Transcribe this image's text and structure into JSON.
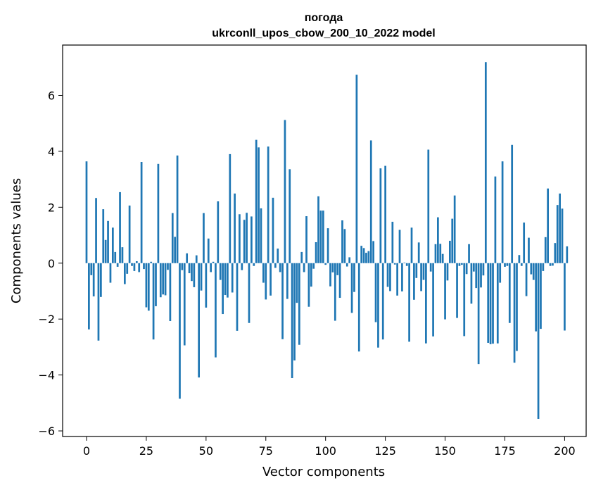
{
  "chart_data": {
    "type": "bar",
    "title": "погода",
    "subtitle": "ukrconll_upos_cbow_200_10_2022 model",
    "xlabel": "Vector components",
    "ylabel": "Components values",
    "xlim": [
      -10,
      209
    ],
    "ylim": [
      -6.2,
      7.8
    ],
    "xticks": [
      0,
      25,
      50,
      75,
      100,
      125,
      150,
      175,
      200
    ],
    "yticks": [
      -6,
      -4,
      -2,
      0,
      2,
      4,
      6
    ],
    "grid": false,
    "bar_color": "#1f77b4",
    "values": [
      3.64,
      -2.37,
      -0.43,
      -1.19,
      2.33,
      -2.77,
      -1.21,
      1.93,
      0.83,
      1.51,
      -0.7,
      1.27,
      0.4,
      -0.13,
      2.54,
      0.57,
      -0.75,
      -0.38,
      2.06,
      -0.1,
      -0.28,
      0.07,
      -0.32,
      3.62,
      -0.21,
      -1.58,
      -1.7,
      0.05,
      -2.73,
      -1.54,
      3.55,
      -1.22,
      -1.12,
      -1.15,
      -0.24,
      -2.07,
      1.79,
      0.94,
      3.85,
      -4.85,
      -0.25,
      -2.94,
      0.35,
      -0.36,
      -0.64,
      -0.86,
      0.28,
      -4.09,
      -0.98,
      1.79,
      -1.59,
      0.88,
      -0.32,
      0.05,
      -3.37,
      2.21,
      -0.6,
      -1.82,
      -1.14,
      -1.23,
      3.9,
      -1.05,
      2.49,
      -2.42,
      1.75,
      -0.25,
      1.55,
      1.8,
      -2.14,
      1.67,
      -0.1,
      4.41,
      4.14,
      1.96,
      -0.7,
      -1.3,
      4.17,
      -1.16,
      2.34,
      -0.17,
      0.52,
      -0.32,
      -2.72,
      5.12,
      -1.28,
      3.36,
      -4.11,
      -3.48,
      -1.42,
      -2.92,
      0.4,
      -0.32,
      1.68,
      -1.56,
      -0.84,
      -0.2,
      0.75,
      2.39,
      1.88,
      1.88,
      -0.06,
      1.25,
      -0.83,
      -0.33,
      -2.06,
      -0.43,
      -1.24,
      1.53,
      1.22,
      -0.12,
      0.21,
      -1.78,
      -1.03,
      6.74,
      -3.16,
      0.62,
      0.54,
      0.37,
      0.43,
      4.39,
      0.79,
      -2.11,
      -3.02,
      3.39,
      -2.73,
      3.48,
      -0.85,
      -1.0,
      1.48,
      -0.05,
      -1.16,
      1.19,
      -1.01,
      0.02,
      -0.1,
      -2.81,
      1.27,
      -1.31,
      -0.53,
      0.74,
      -1.0,
      -0.6,
      -2.87,
      4.06,
      -0.3,
      -2.62,
      0.68,
      1.64,
      0.69,
      0.33,
      -2.01,
      -0.62,
      0.8,
      1.59,
      2.42,
      -1.96,
      -0.1,
      -0.06,
      -2.61,
      -0.39,
      0.68,
      -1.45,
      -0.3,
      -0.89,
      -3.61,
      -0.87,
      -0.44,
      7.19,
      -2.85,
      -2.9,
      -2.88,
      3.1,
      -2.87,
      -0.7,
      3.64,
      -0.13,
      -0.1,
      -2.14,
      4.23,
      -3.56,
      -3.14,
      0.29,
      -0.1,
      1.45,
      -1.18,
      0.91,
      -0.4,
      -0.6,
      -2.44,
      -5.57,
      -2.35,
      -0.28,
      0.93,
      2.67,
      -0.1,
      -0.09,
      0.72,
      2.08,
      2.49,
      1.95,
      -2.41,
      0.6
    ]
  }
}
